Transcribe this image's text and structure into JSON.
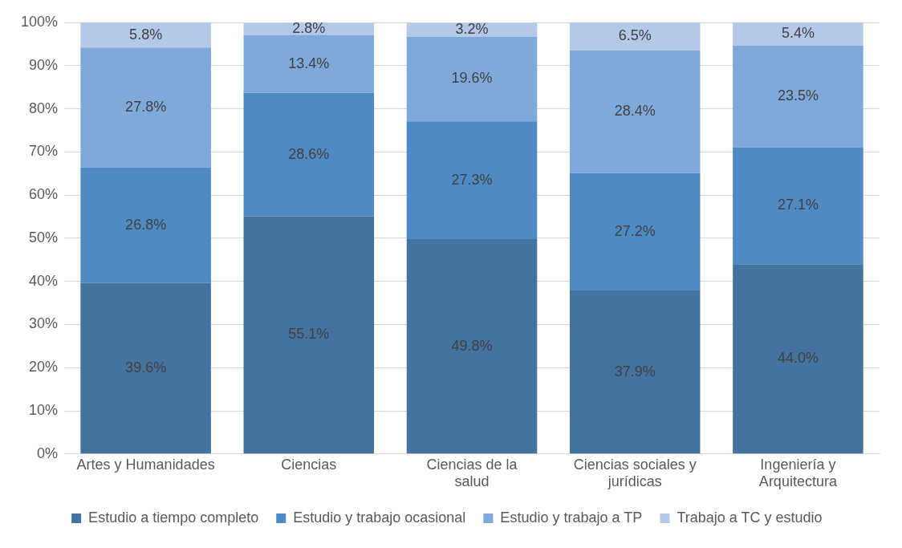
{
  "chart_data": {
    "type": "bar",
    "stacked": true,
    "categories": [
      "Artes y Humanidades",
      "Ciencias",
      "Ciencias de la salud",
      "Ciencias sociales y jurídicas",
      "Ingeniería y Arquitectura"
    ],
    "series": [
      {
        "name": "Estudio a tiempo completo",
        "color": "#44739f",
        "values": [
          39.6,
          55.1,
          49.8,
          37.9,
          44.0
        ],
        "value_labels": [
          "39.6%",
          "55.1%",
          "49.8%",
          "37.9%",
          "44.0%"
        ]
      },
      {
        "name": "Estudio y trabajo ocasional",
        "color": "#4f8ac5",
        "values": [
          26.8,
          28.6,
          27.3,
          27.2,
          27.1
        ],
        "value_labels": [
          "26.8%",
          "28.6%",
          "27.3%",
          "27.2%",
          "27.1%"
        ]
      },
      {
        "name": "Estudio y trabajo a TP",
        "color": "#80a9db",
        "values": [
          27.8,
          13.4,
          19.6,
          28.4,
          23.5
        ],
        "value_labels": [
          "27.8%",
          "13.4%",
          "19.6%",
          "28.4%",
          "23.5%"
        ]
      },
      {
        "name": "Trabajo a TC y estudio",
        "color": "#b4c8e8",
        "values": [
          5.8,
          2.8,
          3.2,
          6.5,
          5.4
        ],
        "value_labels": [
          "5.8%",
          "2.8%",
          "3.2%",
          "6.5%",
          "5.4%"
        ]
      }
    ],
    "ylim": [
      0,
      100
    ],
    "yticks": [
      {
        "value": 0,
        "label": "0%"
      },
      {
        "value": 10,
        "label": "10%"
      },
      {
        "value": 20,
        "label": "20%"
      },
      {
        "value": 30,
        "label": "30%"
      },
      {
        "value": 40,
        "label": "40%"
      },
      {
        "value": 50,
        "label": "50%"
      },
      {
        "value": 60,
        "label": "60%"
      },
      {
        "value": 70,
        "label": "70%"
      },
      {
        "value": 80,
        "label": "80%"
      },
      {
        "value": 90,
        "label": "90%"
      },
      {
        "value": 100,
        "label": "100%"
      }
    ],
    "grid": "y",
    "legend": "bottom"
  }
}
